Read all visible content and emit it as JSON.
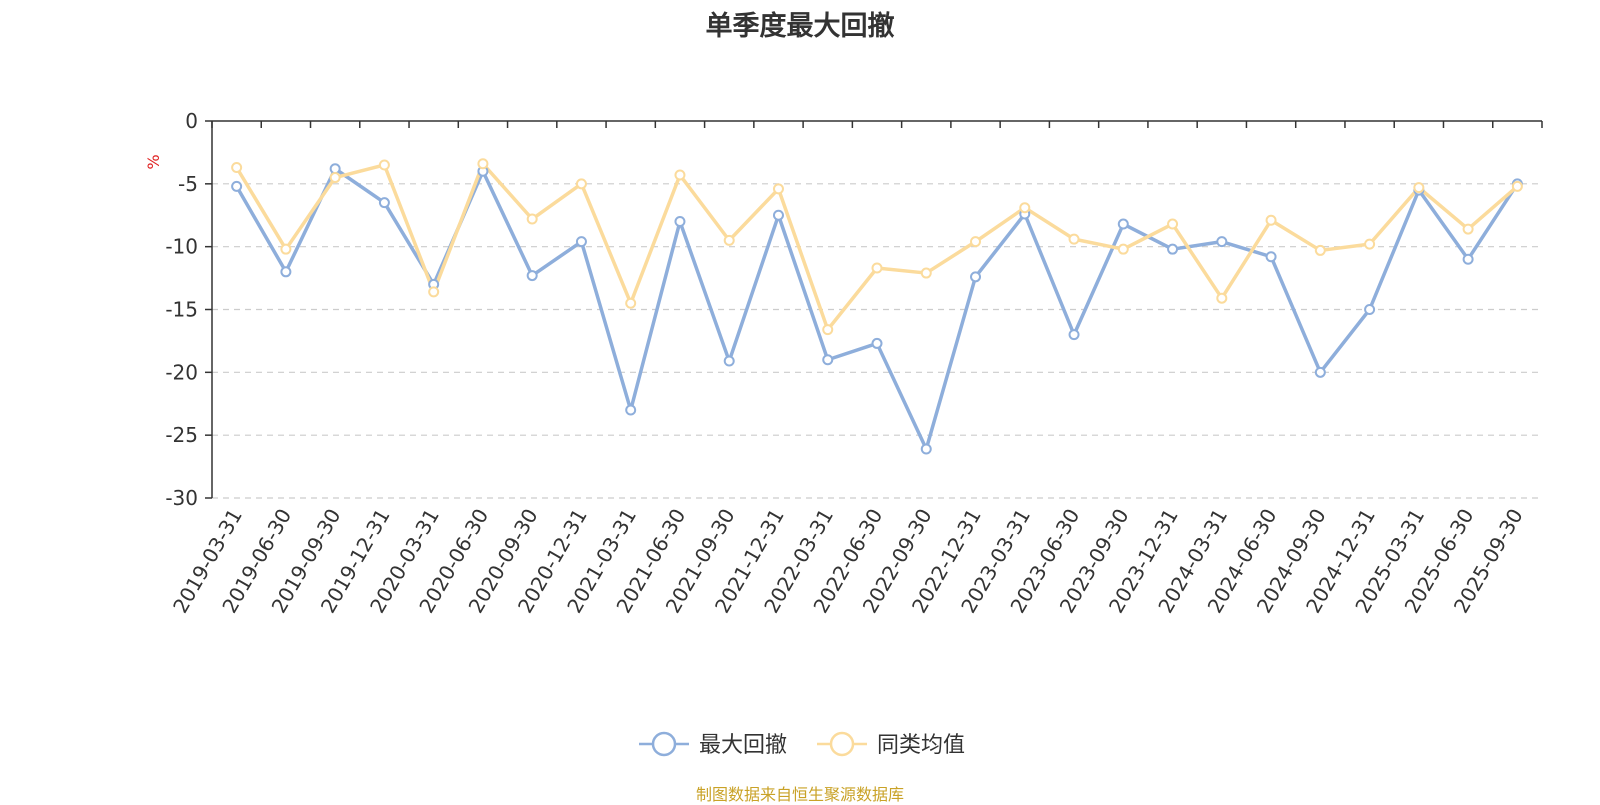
{
  "chart_data": {
    "type": "line",
    "title": "单季度最大回撤",
    "ylabel": "%",
    "xlabel": "",
    "ylim": [
      -30,
      0
    ],
    "y_ticks": [
      0,
      -5,
      -10,
      -15,
      -20,
      -25,
      -30
    ],
    "grid": true,
    "legend_position": "bottom-center",
    "categories": [
      "2019-03-31",
      "2019-06-30",
      "2019-09-30",
      "2019-12-31",
      "2020-03-31",
      "2020-06-30",
      "2020-09-30",
      "2020-12-31",
      "2021-03-31",
      "2021-06-30",
      "2021-09-30",
      "2021-12-31",
      "2022-03-31",
      "2022-06-30",
      "2022-09-30",
      "2022-12-31",
      "2023-03-31",
      "2023-06-30",
      "2023-09-30",
      "2023-12-31",
      "2024-03-31",
      "2024-06-30",
      "2024-09-30",
      "2024-12-31",
      "2025-03-31",
      "2025-06-30",
      "2025-09-30"
    ],
    "series": [
      {
        "name": "最大回撤",
        "color": "#8eaedb",
        "values": [
          -5.2,
          -12.0,
          -3.8,
          -6.5,
          -13.0,
          -4.0,
          -12.3,
          -9.6,
          -23.0,
          -8.0,
          -19.1,
          -7.5,
          -19.0,
          -17.7,
          -26.1,
          -12.4,
          -7.4,
          -17.0,
          -8.2,
          -10.2,
          -9.6,
          -10.8,
          -20.0,
          -15.0,
          -5.5,
          -11.0,
          -5.0
        ]
      },
      {
        "name": "同类均值",
        "color": "#fbdb9c",
        "values": [
          -3.7,
          -10.2,
          -4.5,
          -3.5,
          -13.6,
          -3.4,
          -7.8,
          -5.0,
          -14.5,
          -4.3,
          -9.5,
          -5.4,
          -16.6,
          -11.7,
          -12.1,
          -9.6,
          -6.9,
          -9.4,
          -10.2,
          -8.2,
          -14.1,
          -7.9,
          -10.3,
          -9.8,
          -5.3,
          -8.6,
          -5.2
        ]
      }
    ],
    "source_note": "制图数据来自恒生聚源数据库"
  }
}
